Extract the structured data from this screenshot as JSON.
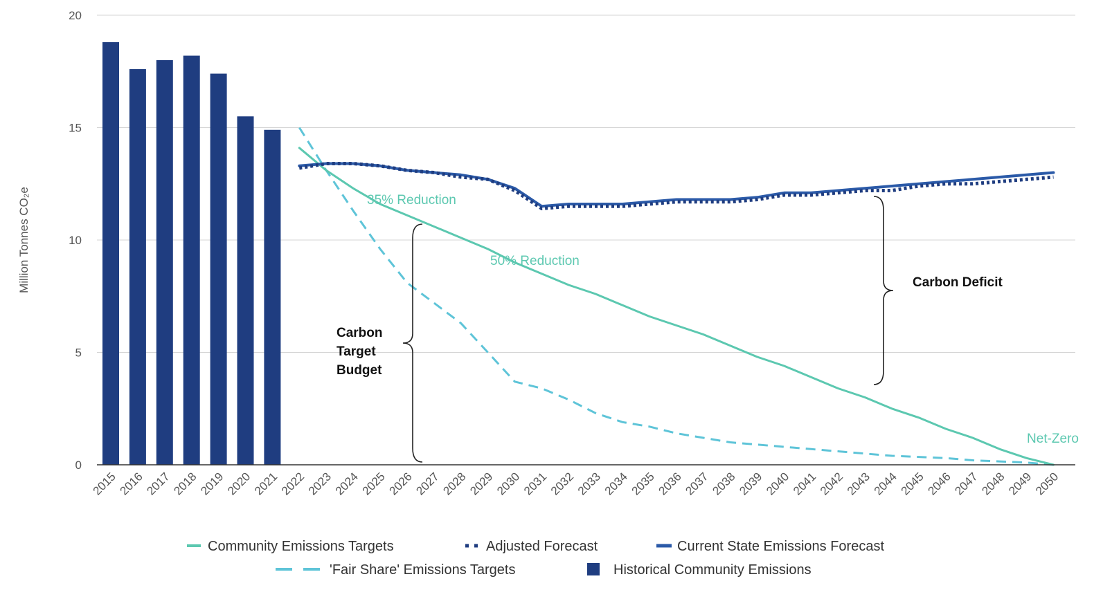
{
  "chart_data": {
    "type": "bar+line",
    "ylabel": "Million Tonnes CO₂e",
    "ylim": [
      0,
      20
    ],
    "yticks": [
      0,
      5,
      10,
      15,
      20
    ],
    "grid": true,
    "legend_position": "bottom",
    "colors": {
      "bars": "#1f3d80",
      "community": "#5cc8b0",
      "fair_share": "#5ec4d8",
      "current": "#2b5aa8",
      "adjusted": "#1f3d80",
      "annotation_dark": "#111111"
    },
    "x": [
      "2015",
      "2016",
      "2017",
      "2018",
      "2019",
      "2020",
      "2021",
      "2022",
      "2023",
      "2024",
      "2025",
      "2026",
      "2027",
      "2028",
      "2029",
      "2030",
      "2031",
      "2032",
      "2033",
      "2034",
      "2035",
      "2036",
      "2037",
      "2038",
      "2039",
      "2040",
      "2041",
      "2042",
      "2043",
      "2044",
      "2045",
      "2046",
      "2047",
      "2048",
      "2049",
      "2050"
    ],
    "series": [
      {
        "name": "Historical Community Emissions",
        "kind": "bar",
        "x": [
          "2015",
          "2016",
          "2017",
          "2018",
          "2019",
          "2020",
          "2021"
        ],
        "values": [
          18.8,
          17.6,
          18.0,
          18.2,
          17.4,
          15.5,
          14.9
        ]
      },
      {
        "name": "Community Emissions Targets",
        "kind": "line",
        "x": [
          "2022",
          "2023",
          "2024",
          "2025",
          "2026",
          "2027",
          "2028",
          "2029",
          "2030",
          "2031",
          "2032",
          "2033",
          "2034",
          "2035",
          "2036",
          "2037",
          "2038",
          "2039",
          "2040",
          "2041",
          "2042",
          "2043",
          "2044",
          "2045",
          "2046",
          "2047",
          "2048",
          "2049",
          "2050"
        ],
        "values": [
          14.1,
          13.1,
          12.3,
          11.6,
          11.1,
          10.6,
          10.1,
          9.6,
          9.0,
          8.5,
          8.0,
          7.6,
          7.1,
          6.6,
          6.2,
          5.8,
          5.3,
          4.8,
          4.4,
          3.9,
          3.4,
          3.0,
          2.5,
          2.1,
          1.6,
          1.2,
          0.7,
          0.3,
          0.0
        ]
      },
      {
        "name": "'Fair Share' Emissions Targets",
        "kind": "dashed",
        "x": [
          "2022",
          "2023",
          "2024",
          "2025",
          "2026",
          "2027",
          "2028",
          "2029",
          "2030",
          "2031",
          "2032",
          "2033",
          "2034",
          "2035",
          "2036",
          "2037",
          "2038",
          "2039",
          "2040",
          "2041",
          "2042",
          "2043",
          "2044",
          "2045",
          "2046",
          "2047",
          "2048",
          "2049",
          "2050"
        ],
        "values": [
          15.0,
          13.1,
          11.3,
          9.6,
          8.1,
          7.2,
          6.3,
          5.0,
          3.7,
          3.4,
          2.9,
          2.3,
          1.9,
          1.7,
          1.4,
          1.2,
          1.0,
          0.9,
          0.8,
          0.7,
          0.6,
          0.5,
          0.4,
          0.35,
          0.3,
          0.2,
          0.15,
          0.1,
          0.0
        ]
      },
      {
        "name": "Current State Emissions Forecast",
        "kind": "line",
        "x": [
          "2022",
          "2023",
          "2024",
          "2025",
          "2026",
          "2027",
          "2028",
          "2029",
          "2030",
          "2031",
          "2032",
          "2033",
          "2034",
          "2035",
          "2036",
          "2037",
          "2038",
          "2039",
          "2040",
          "2041",
          "2042",
          "2043",
          "2044",
          "2045",
          "2046",
          "2047",
          "2048",
          "2049",
          "2050"
        ],
        "values": [
          13.3,
          13.4,
          13.4,
          13.3,
          13.1,
          13.0,
          12.9,
          12.7,
          12.3,
          11.5,
          11.6,
          11.6,
          11.6,
          11.7,
          11.8,
          11.8,
          11.8,
          11.9,
          12.1,
          12.1,
          12.2,
          12.3,
          12.4,
          12.5,
          12.6,
          12.7,
          12.8,
          12.9,
          13.0
        ]
      },
      {
        "name": "Adjusted Forecast",
        "kind": "dotted",
        "x": [
          "2022",
          "2023",
          "2024",
          "2025",
          "2026",
          "2027",
          "2028",
          "2029",
          "2030",
          "2031",
          "2032",
          "2033",
          "2034",
          "2035",
          "2036",
          "2037",
          "2038",
          "2039",
          "2040",
          "2041",
          "2042",
          "2043",
          "2044",
          "2045",
          "2046",
          "2047",
          "2048",
          "2049",
          "2050"
        ],
        "values": [
          13.2,
          13.4,
          13.4,
          13.3,
          13.1,
          13.0,
          12.8,
          12.7,
          12.2,
          11.4,
          11.5,
          11.5,
          11.5,
          11.6,
          11.7,
          11.7,
          11.7,
          11.8,
          12.0,
          12.0,
          12.1,
          12.2,
          12.2,
          12.4,
          12.5,
          12.5,
          12.6,
          12.7,
          12.8
        ]
      }
    ],
    "annotations": [
      {
        "text": "35% Reduction",
        "x": "2025.5",
        "y": 11.9,
        "color": "community"
      },
      {
        "text": "50% Reduction",
        "x": "2030.2",
        "y": 9.1,
        "color": "community"
      },
      {
        "text": "Net-Zero",
        "x": "2050",
        "y": 1.2,
        "color": "community"
      },
      {
        "text": "Carbon Deficit",
        "x": "2045.5",
        "y": 8.1,
        "color": "dark"
      },
      {
        "text": [
          "Carbon",
          "Target",
          "Budget"
        ],
        "x": "2024.5",
        "y": 5.4,
        "color": "dark"
      }
    ],
    "legend": [
      [
        "Community Emissions Targets",
        "Adjusted Forecast",
        "Current State Emissions Forecast"
      ],
      [
        "'Fair Share' Emissions Targets",
        "Historical Community Emissions"
      ]
    ]
  }
}
